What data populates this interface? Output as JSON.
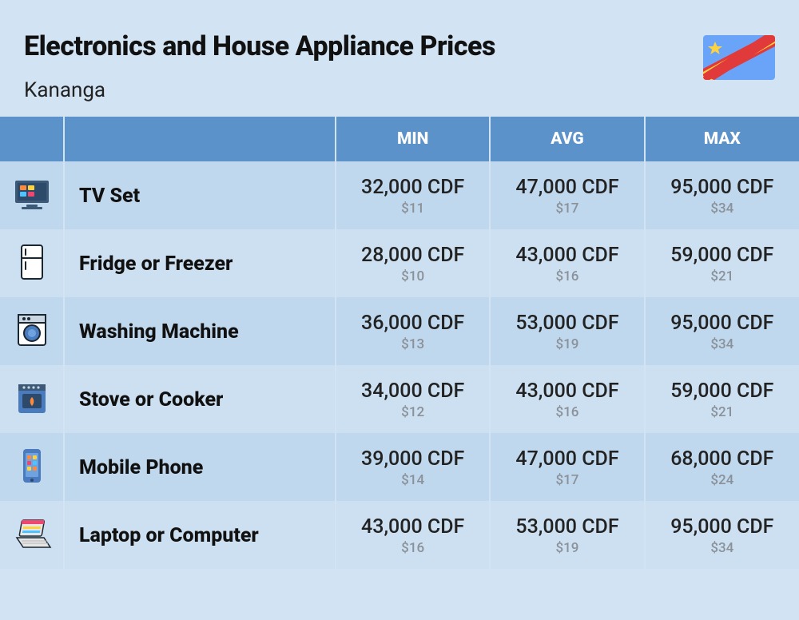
{
  "header": {
    "title": "Electronics and House Appliance Prices",
    "subtitle": "Kananga",
    "flag": {
      "bg": "#6aa4f8",
      "stripe_red": "#e03a3a",
      "stripe_yellow": "#ffd23f",
      "star": "#ffd23f"
    }
  },
  "table": {
    "columns": {
      "min": "MIN",
      "avg": "AVG",
      "max": "MAX"
    },
    "header_bg": "#5b92c9",
    "header_fg": "#ffffff",
    "row_odd_bg": "#c0d8ee",
    "row_even_bg": "#cde0f1",
    "cdf_color": "#222222",
    "usd_color": "#8a9199",
    "rows": [
      {
        "icon": "tv",
        "name": "TV Set",
        "min_cdf": "32,000 CDF",
        "min_usd": "$11",
        "avg_cdf": "47,000 CDF",
        "avg_usd": "$17",
        "max_cdf": "95,000 CDF",
        "max_usd": "$34"
      },
      {
        "icon": "fridge",
        "name": "Fridge or Freezer",
        "min_cdf": "28,000 CDF",
        "min_usd": "$10",
        "avg_cdf": "43,000 CDF",
        "avg_usd": "$16",
        "max_cdf": "59,000 CDF",
        "max_usd": "$21"
      },
      {
        "icon": "washing",
        "name": "Washing Machine",
        "min_cdf": "36,000 CDF",
        "min_usd": "$13",
        "avg_cdf": "53,000 CDF",
        "avg_usd": "$19",
        "max_cdf": "95,000 CDF",
        "max_usd": "$34"
      },
      {
        "icon": "stove",
        "name": "Stove or Cooker",
        "min_cdf": "34,000 CDF",
        "min_usd": "$12",
        "avg_cdf": "43,000 CDF",
        "avg_usd": "$16",
        "max_cdf": "59,000 CDF",
        "max_usd": "$21"
      },
      {
        "icon": "phone",
        "name": "Mobile Phone",
        "min_cdf": "39,000 CDF",
        "min_usd": "$14",
        "avg_cdf": "47,000 CDF",
        "avg_usd": "$17",
        "max_cdf": "68,000 CDF",
        "max_usd": "$24"
      },
      {
        "icon": "laptop",
        "name": "Laptop or Computer",
        "min_cdf": "43,000 CDF",
        "min_usd": "$16",
        "avg_cdf": "53,000 CDF",
        "avg_usd": "$19",
        "max_cdf": "95,000 CDF",
        "max_usd": "$34"
      }
    ]
  },
  "icons": {
    "tv": {
      "primary": "#3c5a78",
      "accent1": "#ff8a3d",
      "accent2": "#ffd23f",
      "accent3": "#4dc3ff"
    },
    "fridge": {
      "body": "#ffffff",
      "stroke": "#1b2730"
    },
    "washing": {
      "body": "#ffffff",
      "panel": "#c9d6e2",
      "drum": "#4a7bbf",
      "stroke": "#1b2730"
    },
    "stove": {
      "body": "#4a7bbf",
      "window": "#2e4a6b",
      "flame": "#ff8a3d",
      "knob": "#c9d6e2"
    },
    "phone": {
      "body": "#4a7bbf",
      "screen": "#6fa3e0",
      "app1": "#ff8a3d",
      "app2": "#ffd23f",
      "app3": "#ef476f"
    },
    "laptop": {
      "body": "#e6e6e6",
      "screen_bar": "#ef476f",
      "row1": "#ffd23f",
      "row2": "#4dc3ff",
      "stroke": "#1b2730"
    }
  }
}
